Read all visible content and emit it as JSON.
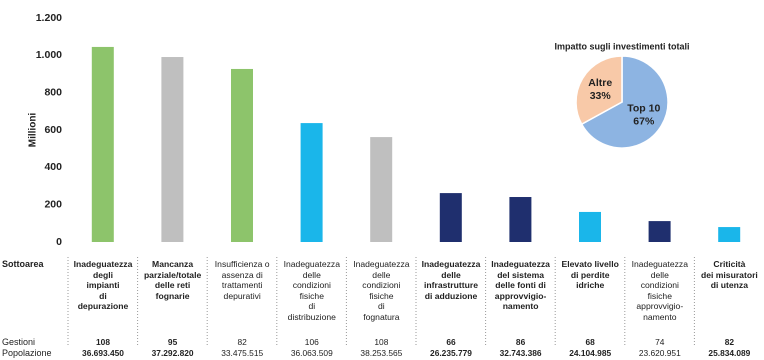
{
  "chart_data": [
    {
      "type": "bar",
      "y_label": "Millioni",
      "category_label": "Sottoarea",
      "categories": [
        "Inadeguatezza\ndegli\nimpianti\ndi\ndepurazione",
        "Mancanza\nparziale/totale\ndelle reti\nfognarie",
        "Insufficienza o\nassenza di\ntrattamenti\ndepurativi",
        "Inadeguatezza\ndelle\ncondizioni\nfisiche\ndi\ndistribuzione",
        "Inadeguatezza\ndelle\ncondizioni\nfisiche\ndi\nfognatura",
        "Inadeguatezza\ndelle\ninfrastrutture\ndi adduzione",
        "Inadeguatezza\ndel sistema\ndelle fonti di\napprovvigio-\nnamento",
        "Elevato livello\ndi perdite\nidriche",
        "Inadeguatezza\ndelle\ncondizioni\nfisiche\napprovvigio-\nnamento",
        "Criticità\ndei misuratori\ndi utenza"
      ],
      "values": [
        1045,
        991,
        927,
        637,
        562,
        262,
        241,
        161,
        112,
        80
      ],
      "colors": [
        "#8dc46b",
        "#bfbfbf",
        "#8dc46b",
        "#1ab6ea",
        "#bfbfbf",
        "#1f2f6e",
        "#1f2f6e",
        "#1ab6ea",
        "#1f2f6e",
        "#1ab6ea"
      ],
      "ylim": [
        0,
        1200
      ],
      "yticks": [
        0,
        200,
        400,
        600,
        800,
        {
          "value": 1000,
          "label": "1.000"
        },
        {
          "value": 1200,
          "label": "1.200"
        }
      ],
      "grid": false,
      "table": {
        "rows": [
          {
            "name": "Gestioni",
            "values": [
              108,
              95,
              82,
              106,
              108,
              66,
              86,
              68,
              74,
              82
            ]
          },
          {
            "name": "Popolazione",
            "values": [
              36693450,
              37292820,
              33475515,
              36063509,
              38253565,
              26235779,
              32743386,
              24104985,
              23620951,
              25834089
            ],
            "value_labels": [
              "36.693.450",
              "37.292.820",
              "33.475.515",
              "36.063.509",
              "38.253.565",
              "26.235.779",
              "32.743.386",
              "24.104.985",
              "23.620.951",
              "25.834.089"
            ]
          }
        ]
      }
    },
    {
      "type": "pie",
      "title": "Impatto sugli investimenti totali",
      "categories": [
        "Top 10",
        "Altre"
      ],
      "values": [
        67,
        33
      ],
      "value_labels": [
        "67%",
        "33%"
      ],
      "colors": [
        "#8db4e2",
        "#f8c9a8"
      ]
    }
  ]
}
